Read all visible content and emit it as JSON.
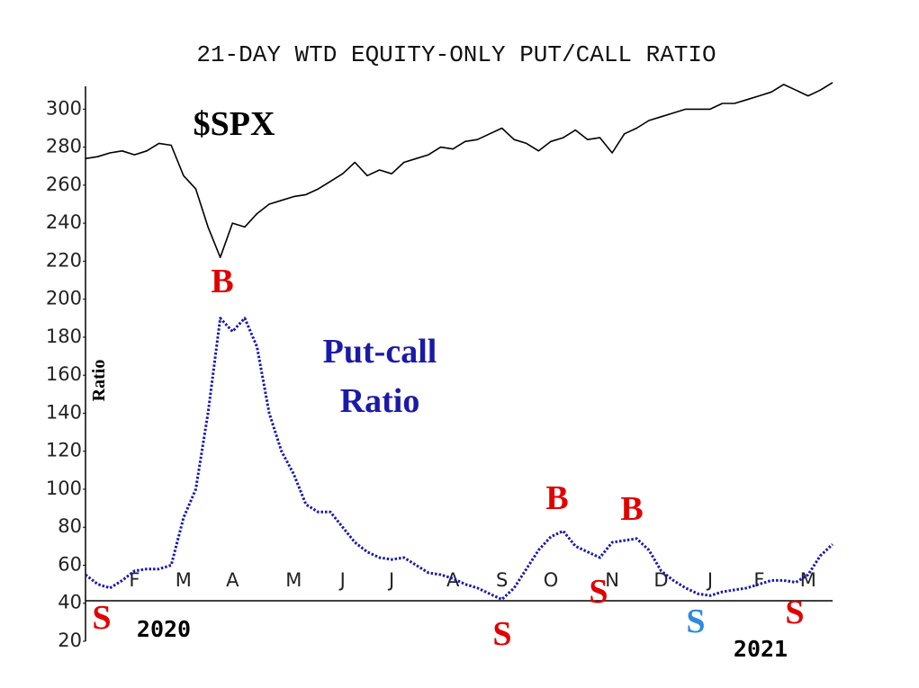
{
  "chart_data": {
    "type": "line",
    "title": "21-DAY WTD EQUITY-ONLY PUT/CALL RATIO",
    "y_label": "Ratio",
    "ylim": [
      20,
      312
    ],
    "yticks": [
      20,
      40,
      60,
      80,
      100,
      120,
      140,
      160,
      180,
      200,
      220,
      240,
      260,
      280,
      300
    ],
    "categories": [
      null,
      null,
      null,
      null,
      "F",
      null,
      null,
      null,
      "M",
      null,
      null,
      null,
      "A",
      null,
      null,
      null,
      null,
      "M",
      null,
      null,
      null,
      "J",
      null,
      null,
      null,
      "J",
      null,
      null,
      null,
      null,
      "A",
      null,
      null,
      null,
      "S",
      null,
      null,
      null,
      "O",
      null,
      null,
      null,
      null,
      "N",
      null,
      null,
      null,
      "D",
      null,
      null,
      null,
      "J",
      null,
      null,
      null,
      "F",
      null,
      null,
      null,
      "M",
      null,
      null
    ],
    "year_labels": [
      "2020",
      "2021"
    ],
    "series": [
      {
        "name": "$SPX",
        "color": "#000000",
        "style": "solid",
        "values": [
          274,
          275,
          277,
          278,
          276,
          278,
          282,
          281,
          265,
          258,
          238,
          222,
          240,
          238,
          245,
          250,
          252,
          254,
          255,
          258,
          262,
          266,
          272,
          265,
          268,
          266,
          272,
          274,
          276,
          280,
          279,
          283,
          284,
          287,
          290,
          284,
          282,
          278,
          283,
          285,
          289,
          284,
          285,
          277,
          287,
          290,
          294,
          296,
          298,
          300,
          300,
          300,
          303,
          303,
          305,
          307,
          309,
          313,
          310,
          307,
          310,
          314
        ]
      },
      {
        "name": "Put-call Ratio",
        "color": "#1a1aa8",
        "style": "dotted",
        "values": [
          55,
          50,
          48,
          52,
          57,
          58,
          58,
          60,
          85,
          100,
          140,
          190,
          183,
          190,
          175,
          140,
          120,
          108,
          92,
          88,
          88,
          80,
          72,
          67,
          64,
          63,
          64,
          60,
          56,
          55,
          53,
          50,
          48,
          45,
          42,
          48,
          58,
          68,
          75,
          78,
          70,
          67,
          64,
          72,
          73,
          74,
          68,
          57,
          52,
          48,
          45,
          44,
          46,
          47,
          48,
          50,
          52,
          52,
          51,
          55,
          65,
          71
        ]
      }
    ],
    "annotations": [
      {
        "text": "B",
        "color": "#e00000"
      },
      {
        "text": "B",
        "color": "#e00000"
      },
      {
        "text": "B",
        "color": "#e00000"
      },
      {
        "text": "S",
        "color": "#e00000"
      },
      {
        "text": "S",
        "color": "#e00000"
      },
      {
        "text": "S",
        "color": "#e00000"
      },
      {
        "text": "S",
        "color": "#2a8be0"
      },
      {
        "text": "S",
        "color": "#e00000"
      }
    ]
  }
}
